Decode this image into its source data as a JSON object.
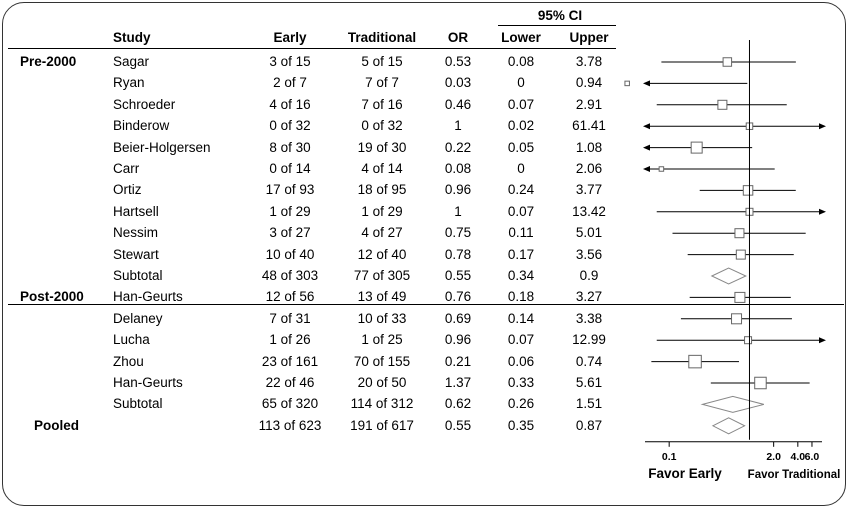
{
  "chart_data": {
    "type": "table",
    "header": {
      "ci_group": "95% CI",
      "study": "Study",
      "early": "Early",
      "traditional": "Traditional",
      "or": "OR",
      "lower": "Lower",
      "upper": "Upper"
    },
    "groups": [
      {
        "label": "Pre-2000",
        "studies": [
          {
            "study": "Sagar",
            "early": "3 of 15",
            "traditional": "5 of 15",
            "or": "0.53",
            "lower": "0.08",
            "upper": "3.78",
            "weight": 0.45
          },
          {
            "study": "Ryan",
            "early": "2 of 7",
            "traditional": "7 of 7",
            "or": "0.03",
            "lower": "0",
            "upper": "0.94",
            "weight": 0.05
          },
          {
            "study": "Schroeder",
            "early": "4 of 16",
            "traditional": "7 of 16",
            "or": "0.46",
            "lower": "0.07",
            "upper": "2.91",
            "weight": 0.5
          },
          {
            "study": "Binderow",
            "early": "0 of 32",
            "traditional": "0 of 32",
            "or": "1",
            "lower": "0.02",
            "upper": "61.41",
            "weight": 0.25
          },
          {
            "study": "Beier-Holgersen",
            "early": "8 of 30",
            "traditional": "19 of 30",
            "or": "0.22",
            "lower": "0.05",
            "upper": "1.08",
            "weight": 0.7
          },
          {
            "study": "Carr",
            "early": "0 of 14",
            "traditional": "4 of 14",
            "or": "0.08",
            "lower": "0",
            "upper": "2.06",
            "weight": 0.05
          },
          {
            "study": "Ortiz",
            "early": "17 of 93",
            "traditional": "18 of 95",
            "or": "0.96",
            "lower": "0.24",
            "upper": "3.77",
            "weight": 0.55
          },
          {
            "study": "Hartsell",
            "early": "1 of 29",
            "traditional": "1 of 29",
            "or": "1",
            "lower": "0.07",
            "upper": "13.42",
            "weight": 0.3
          },
          {
            "study": "Nessim",
            "early": "3 of 27",
            "traditional": "4 of 27",
            "or": "0.75",
            "lower": "0.11",
            "upper": "5.01",
            "weight": 0.5
          },
          {
            "study": "Stewart",
            "early": "10 of 40",
            "traditional": "12 of 40",
            "or": "0.78",
            "lower": "0.17",
            "upper": "3.56",
            "weight": 0.5
          }
        ],
        "subtotal": {
          "study": "Subtotal",
          "early": "48 of 303",
          "traditional": "77 of 305",
          "or": "0.55",
          "lower": "0.34",
          "upper": "0.9"
        }
      },
      {
        "label": "Post-2000",
        "studies": [
          {
            "study": "Han-Geurts",
            "early": "12 of 56",
            "traditional": "13 of 49",
            "or": "0.76",
            "lower": "0.18",
            "upper": "3.27",
            "weight": 0.6
          },
          {
            "study": "Delaney",
            "early": "7 of 31",
            "traditional": "10 of 33",
            "or": "0.69",
            "lower": "0.14",
            "upper": "3.38",
            "weight": 0.6
          },
          {
            "study": "Lucha",
            "early": "1 of 26",
            "traditional": "1 of 25",
            "or": "0.96",
            "lower": "0.07",
            "upper": "12.99",
            "weight": 0.3
          },
          {
            "study": "Zhou",
            "early": "23 of 161",
            "traditional": "70 of 155",
            "or": "0.21",
            "lower": "0.06",
            "upper": "0.74",
            "weight": 0.85
          },
          {
            "study": "Han-Geurts",
            "early": "22 of 46",
            "traditional": "20 of 50",
            "or": "1.37",
            "lower": "0.33",
            "upper": "5.61",
            "weight": 0.75
          }
        ],
        "subtotal": {
          "study": "Subtotal",
          "early": "65 of 320",
          "traditional": "114 of 312",
          "or": "0.62",
          "lower": "0.26",
          "upper": "1.51"
        }
      }
    ],
    "pooled": {
      "label": "Pooled",
      "early": "113 of 623",
      "traditional": "191 of 617",
      "or": "0.55",
      "lower": "0.35",
      "upper": "0.87"
    },
    "axis": {
      "scale": "log",
      "xlim": [
        0.05,
        8.0
      ],
      "reference": 1,
      "ticks": [
        "0.1",
        "2.0",
        "4.0",
        "6.0"
      ],
      "tick_values": [
        0.1,
        2.0,
        4.0,
        6.0
      ],
      "left_label": "Favor Early",
      "right_label": "Favor Traditional"
    }
  }
}
